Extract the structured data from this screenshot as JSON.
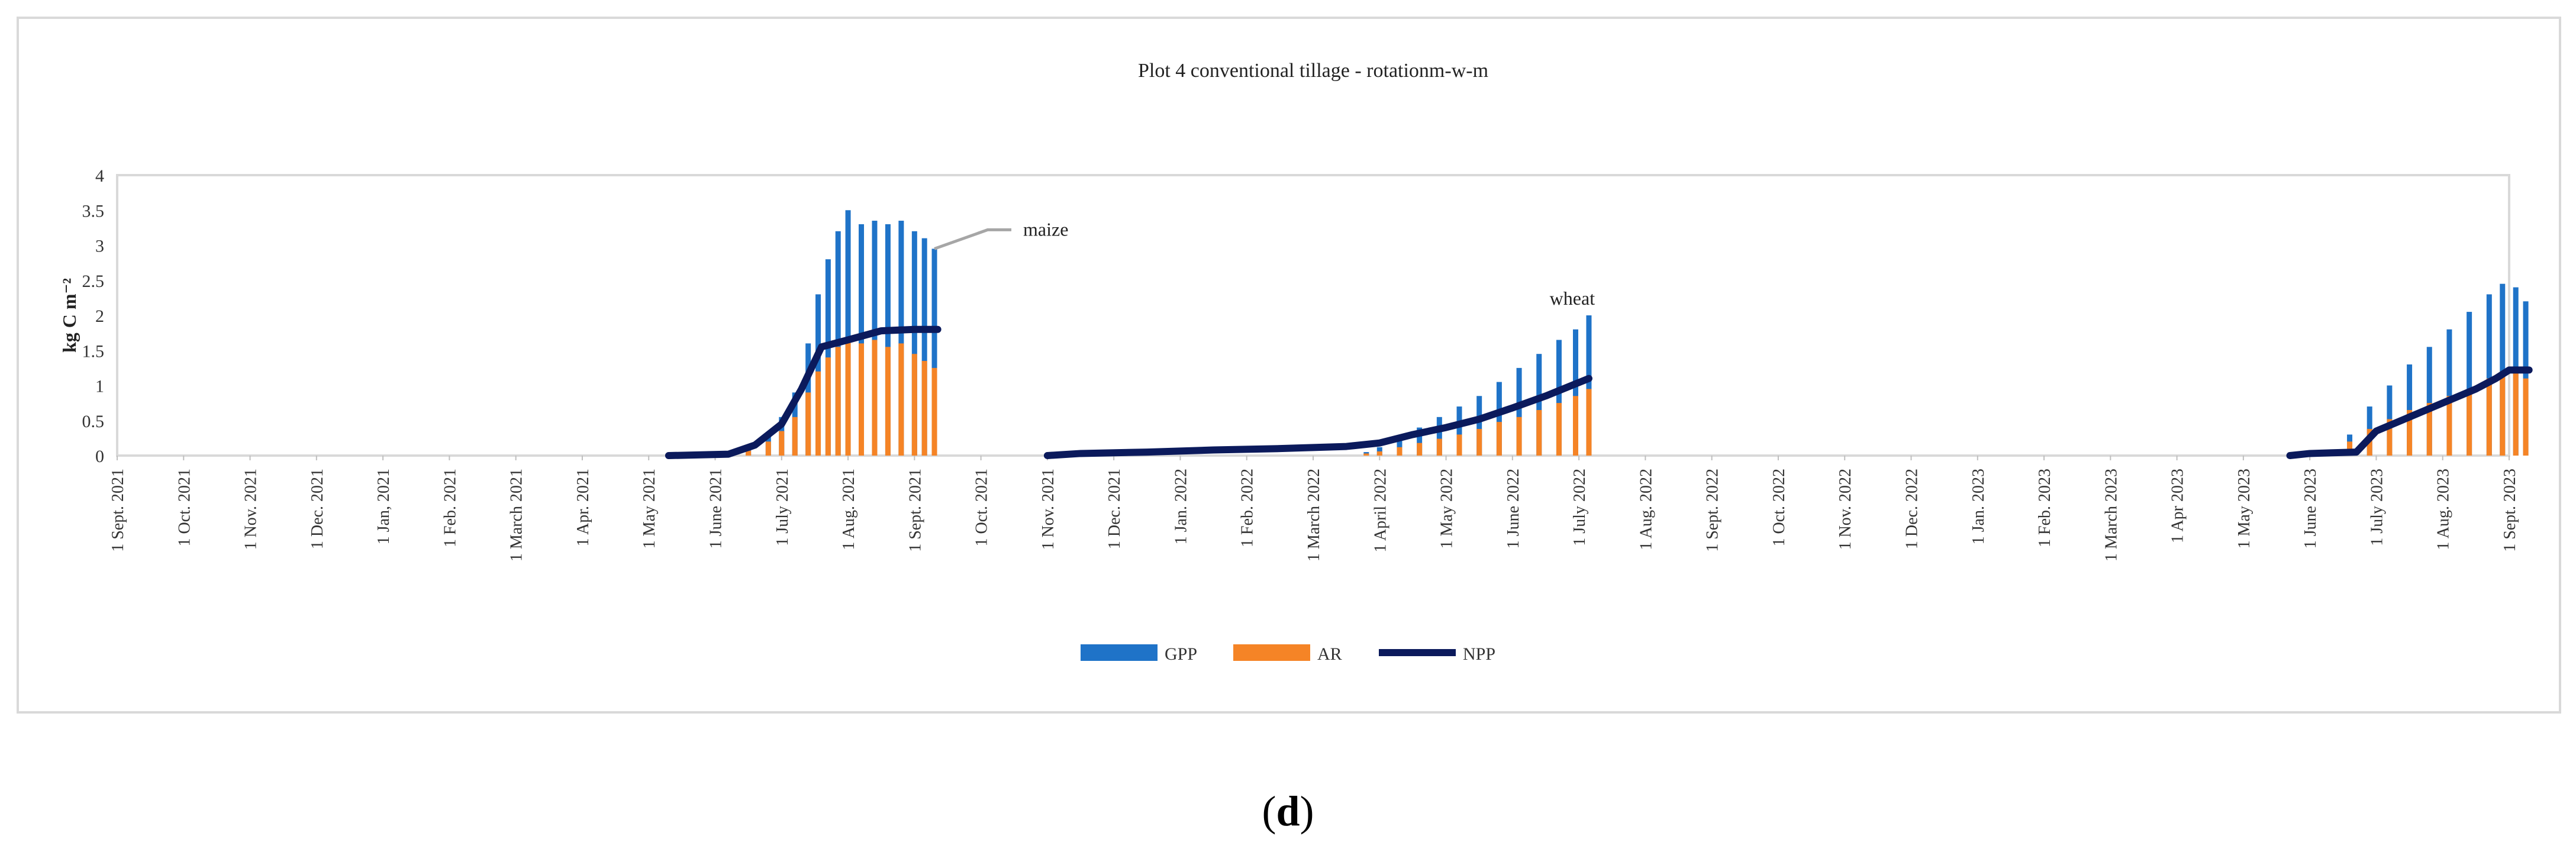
{
  "chart_data": {
    "type": "bar",
    "title": "Plot 4 conventional tillage - rotationm-w-m",
    "ylabel": "kg C  m⁻²",
    "xlabel": "",
    "ylim": [
      0,
      4
    ],
    "yticks": [
      0,
      0.5,
      1,
      1.5,
      2,
      2.5,
      3,
      3.5,
      4
    ],
    "grid": false,
    "legend_position": "bottom-center",
    "x_tick_labels": [
      "1 Sept. 2021",
      "1 Oct. 2021",
      "1 Nov. 2021",
      "1 Dec. 2021",
      "1 Jan, 2021",
      "1 Feb. 2021",
      "1 March 2021",
      "1 Apr. 2021",
      "1 May 2021",
      "1 June 2021",
      "1 July 2021",
      "1 Aug. 2021",
      "1 Sept. 2021",
      "1 Oct. 2021",
      "1 Nov. 2021",
      "1 Dec. 2021",
      "1 Jan. 2022",
      "1 Feb. 2022",
      "1 March 2022",
      "1 April 2022",
      "1 May 2022",
      "1 June 2022",
      "1 July 2022",
      "1 Aug. 2022",
      "1 Sept. 2022",
      "1 Oct. 2022",
      "1 Nov. 2022",
      "1 Dec. 2022",
      "1 Jan. 2023",
      "1 Feb. 2023",
      "1 March 2023",
      "1 Apr 2023",
      "1 May 2023",
      "1 June 2023",
      "1 July 2023",
      "1 Aug. 2023",
      "1 Sept. 2023"
    ],
    "x_unit": "months since first tick",
    "series": [
      {
        "name": "GPP",
        "kind": "bar",
        "color": "#1f73c8",
        "points": [
          [
            9.2,
            0.05
          ],
          [
            9.5,
            0.12
          ],
          [
            9.8,
            0.3
          ],
          [
            10.0,
            0.55
          ],
          [
            10.2,
            0.9
          ],
          [
            10.4,
            1.6
          ],
          [
            10.55,
            2.3
          ],
          [
            10.7,
            2.8
          ],
          [
            10.85,
            3.2
          ],
          [
            11.0,
            3.5
          ],
          [
            11.2,
            3.3
          ],
          [
            11.4,
            3.35
          ],
          [
            11.6,
            3.3
          ],
          [
            11.8,
            3.35
          ],
          [
            12.0,
            3.2
          ],
          [
            12.15,
            3.1
          ],
          [
            12.3,
            2.95
          ],
          [
            18.8,
            0.05
          ],
          [
            19.0,
            0.12
          ],
          [
            19.3,
            0.25
          ],
          [
            19.6,
            0.4
          ],
          [
            19.9,
            0.55
          ],
          [
            20.2,
            0.7
          ],
          [
            20.5,
            0.85
          ],
          [
            20.8,
            1.05
          ],
          [
            21.1,
            1.25
          ],
          [
            21.4,
            1.45
          ],
          [
            21.7,
            1.65
          ],
          [
            21.95,
            1.8
          ],
          [
            22.15,
            2.0
          ],
          [
            33.3,
            0.05
          ],
          [
            33.6,
            0.3
          ],
          [
            33.9,
            0.7
          ],
          [
            34.2,
            1.0
          ],
          [
            34.5,
            1.3
          ],
          [
            34.8,
            1.55
          ],
          [
            35.1,
            1.8
          ],
          [
            35.4,
            2.05
          ],
          [
            35.7,
            2.3
          ],
          [
            35.9,
            2.45
          ],
          [
            36.1,
            2.4
          ],
          [
            36.25,
            2.2
          ]
        ]
      },
      {
        "name": "AR",
        "kind": "bar",
        "color": "#f58426",
        "points": [
          [
            9.2,
            0.03
          ],
          [
            9.5,
            0.07
          ],
          [
            9.8,
            0.2
          ],
          [
            10.0,
            0.35
          ],
          [
            10.2,
            0.55
          ],
          [
            10.4,
            0.9
          ],
          [
            10.55,
            1.2
          ],
          [
            10.7,
            1.4
          ],
          [
            10.85,
            1.55
          ],
          [
            11.0,
            1.65
          ],
          [
            11.2,
            1.6
          ],
          [
            11.4,
            1.65
          ],
          [
            11.6,
            1.55
          ],
          [
            11.8,
            1.6
          ],
          [
            12.0,
            1.45
          ],
          [
            12.15,
            1.35
          ],
          [
            12.3,
            1.25
          ],
          [
            18.8,
            0.03
          ],
          [
            19.0,
            0.06
          ],
          [
            19.3,
            0.12
          ],
          [
            19.6,
            0.18
          ],
          [
            19.9,
            0.24
          ],
          [
            20.2,
            0.3
          ],
          [
            20.5,
            0.38
          ],
          [
            20.8,
            0.48
          ],
          [
            21.1,
            0.55
          ],
          [
            21.4,
            0.65
          ],
          [
            21.7,
            0.75
          ],
          [
            21.95,
            0.85
          ],
          [
            22.15,
            0.95
          ],
          [
            33.3,
            0.03
          ],
          [
            33.6,
            0.2
          ],
          [
            33.9,
            0.38
          ],
          [
            34.2,
            0.52
          ],
          [
            34.5,
            0.65
          ],
          [
            34.8,
            0.75
          ],
          [
            35.1,
            0.85
          ],
          [
            35.4,
            0.95
          ],
          [
            35.7,
            1.1
          ],
          [
            35.9,
            1.2
          ],
          [
            36.1,
            1.2
          ],
          [
            36.25,
            1.1
          ]
        ]
      },
      {
        "name": "NPP",
        "kind": "line",
        "color": "#0b1a5c",
        "points": [
          [
            8.3,
            0
          ],
          [
            9.2,
            0.02
          ],
          [
            9.6,
            0.15
          ],
          [
            10.0,
            0.45
          ],
          [
            10.3,
            0.95
          ],
          [
            10.6,
            1.55
          ],
          [
            11.0,
            1.65
          ],
          [
            11.5,
            1.78
          ],
          [
            12.0,
            1.8
          ],
          [
            12.35,
            1.8
          ],
          [
            14.0,
            0
          ],
          [
            14.5,
            0.03
          ],
          [
            15.5,
            0.05
          ],
          [
            16.5,
            0.08
          ],
          [
            17.5,
            0.1
          ],
          [
            18.5,
            0.13
          ],
          [
            19.0,
            0.18
          ],
          [
            19.5,
            0.3
          ],
          [
            20.0,
            0.4
          ],
          [
            20.5,
            0.52
          ],
          [
            21.0,
            0.68
          ],
          [
            21.5,
            0.85
          ],
          [
            22.15,
            1.1
          ],
          [
            32.7,
            0
          ],
          [
            33.0,
            0.03
          ],
          [
            33.7,
            0.05
          ],
          [
            34.0,
            0.35
          ],
          [
            34.5,
            0.55
          ],
          [
            35.0,
            0.75
          ],
          [
            35.5,
            0.95
          ],
          [
            35.8,
            1.1
          ],
          [
            36.0,
            1.22
          ],
          [
            36.3,
            1.22
          ]
        ]
      }
    ],
    "annotations": [
      {
        "text": "maize",
        "x": 12.3,
        "y": 2.95
      },
      {
        "text": "wheat",
        "x": 21.9,
        "y": 2.15
      }
    ]
  },
  "panel_label": "d"
}
